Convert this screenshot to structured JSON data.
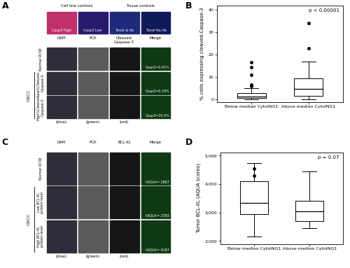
{
  "image_panels": [
    {
      "panel_label": "A",
      "controls": [
        {
          "title": "Cell line controls",
          "tiles": [
            "Casp3 High",
            "Casp3 Low"
          ]
        },
        {
          "title": "Tissue controls",
          "tiles": [
            "Tonsil w Ab",
            "Tonsil No Ab"
          ]
        }
      ],
      "columns": [
        "DAPI",
        "PCK",
        "Cleaved-Caspase-3",
        "Merge"
      ],
      "channels": [
        "(blue)",
        "(green)",
        "(red)"
      ],
      "group_label": "OSCC",
      "rows": [
        {
          "label": "Normal OCSE",
          "merge_text": "Casp3=0.41%"
        },
        {
          "label": "Low%Cleaved-Caspase-3",
          "merge_text": "Casp3=0.79%"
        },
        {
          "label": "High%Cleaved-Caspase-3",
          "merge_text": "Casp3=30.4%"
        }
      ]
    },
    {
      "panel_label": "C",
      "controls": [],
      "columns": [
        "DAPI",
        "PCK",
        "BCL-XL",
        "Merge"
      ],
      "channels": [
        "(blue)",
        "(green)",
        "(red)"
      ],
      "group_label": "OSCC",
      "rows": [
        {
          "label": "Normal OCSE",
          "merge_text": "tAQUA= 2867"
        },
        {
          "label": "Low BCL-XL protein level",
          "merge_text": "tAQUA= 2383"
        },
        {
          "label": "High BCL-XL protein level",
          "merge_text": "tAQUA= 4167"
        }
      ]
    }
  ],
  "chart_data": [
    {
      "type": "box",
      "panel_label": "B",
      "y_label": "% cells expressing cleaved-Caspase-3",
      "annotations": [
        "p < 0.00001"
      ],
      "categories": [
        "Below median CytoING1",
        "Above median CytoING1"
      ],
      "boxes": [
        {
          "whislo": 0,
          "q1": 0.8,
          "med": 1.5,
          "q3": 2.8,
          "whishi": 5,
          "fliers": [
            6,
            6.5,
            11,
            14.5,
            16.5
          ]
        },
        {
          "whislo": 0,
          "q1": 1.8,
          "med": 4.8,
          "q3": 9.5,
          "whishi": 17,
          "fliers": [
            23,
            34
          ]
        }
      ],
      "ylim": [
        -1,
        42
      ],
      "yticks": [
        0,
        10,
        20,
        30,
        40
      ],
      "grid": false
    },
    {
      "type": "box",
      "panel_label": "D",
      "y_label": "Tumor BCL-XL (AQUA scores)",
      "annotations": [
        "p = 0.07"
      ],
      "categories": [
        "Below median CytoING1",
        "Above median CytoING1"
      ],
      "boxes": [
        {
          "whislo": 2150,
          "q1": 2950,
          "med": 3350,
          "q3": 4100,
          "whishi": 4750,
          "fliers": [
            4300,
            4550
          ]
        },
        {
          "whislo": 2450,
          "q1": 2700,
          "med": 3050,
          "q3": 3400,
          "whishi": 4450,
          "fliers": []
        }
      ],
      "ylim": [
        1900,
        5100
      ],
      "yticks": [
        {
          "value": 2000,
          "label": "2,000"
        },
        {
          "value": 3000,
          "label": "3,000"
        },
        {
          "value": 4000,
          "label": "4,000"
        },
        {
          "value": 5000,
          "label": "5,000"
        }
      ],
      "grid": false
    }
  ]
}
